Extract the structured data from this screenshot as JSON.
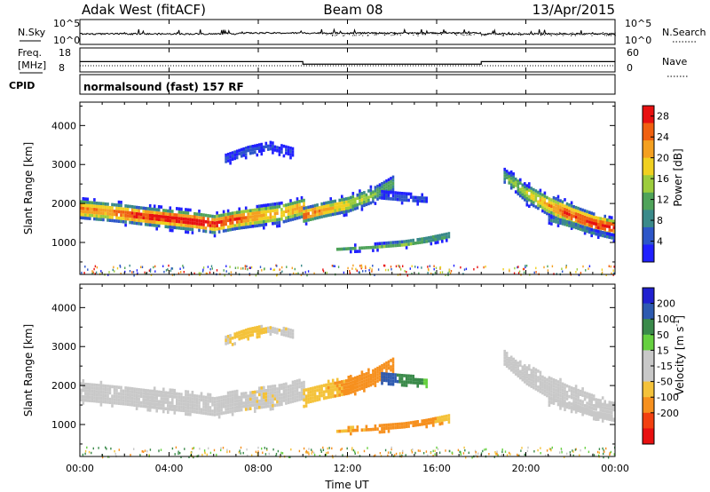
{
  "header": {
    "station": "Adak West (fitACF)",
    "beam": "Beam 08",
    "date": "13/Apr/2015"
  },
  "params": {
    "nsky_label": "N.Sky",
    "nsearch_label": "N.Search",
    "noise_ticks": [
      "10^5",
      "10^0"
    ],
    "freq_label_1": "Freq.",
    "freq_label_2": "[MHz]",
    "freq_ticks": [
      "18",
      "8"
    ],
    "nave_label": "Nave",
    "nave_ticks": [
      "60",
      "0"
    ],
    "cpid_label": "CPID",
    "cpid_text": "normalsound (fast) 157 RF"
  },
  "colors": {
    "power": [
      "#2020ff",
      "#2d56c8",
      "#3a8a8a",
      "#4fa35a",
      "#9ccc3c",
      "#f0d020",
      "#f4a020",
      "#f06010",
      "#e81010"
    ],
    "velocity": [
      "#e81010",
      "#f24010",
      "#f6901e",
      "#f4c23a",
      "#c8c8c8",
      "#c8c8c8",
      "#66d040",
      "#3a8a4a",
      "#2d5ab0",
      "#2020d0"
    ]
  },
  "chart_data": [
    {
      "type": "heatmap",
      "title": "",
      "xlabel": "Time UT",
      "ylabel": "Slant Range [km]",
      "xlim": [
        "00:00",
        "24:00"
      ],
      "ylim": [
        180,
        4600
      ],
      "x_ticks": [
        "00:00",
        "04:00",
        "08:00",
        "12:00",
        "16:00",
        "20:00",
        "00:00"
      ],
      "y_ticks": [
        1000,
        2000,
        3000,
        4000
      ],
      "colorbar": {
        "label": "Power [dB]",
        "ticks": [
          4,
          8,
          12,
          16,
          20,
          24,
          28
        ],
        "range": [
          0,
          30
        ]
      },
      "bands": [
        {
          "t": [
            0,
            1,
            2,
            3,
            4,
            5,
            6,
            7,
            8,
            9,
            10
          ],
          "center_km": [
            1850,
            1800,
            1730,
            1660,
            1610,
            1550,
            1470,
            1590,
            1680,
            1760,
            1900
          ],
          "halfwidth_km": [
            230,
            230,
            220,
            220,
            230,
            230,
            230,
            240,
            250,
            250,
            240
          ],
          "peak_db": [
            24,
            22,
            26,
            28,
            28,
            30,
            28,
            26,
            22,
            20,
            22
          ]
        },
        {
          "t": [
            10,
            11,
            12,
            13,
            14
          ],
          "center_km": [
            1700,
            1850,
            1980,
            2180,
            2500
          ],
          "halfwidth_km": [
            180,
            190,
            200,
            190,
            180
          ],
          "peak_db": [
            26,
            22,
            18,
            14,
            12
          ]
        },
        {
          "t": [
            11.5,
            13,
            14.5,
            15.5,
            16.5
          ],
          "center_km": [
            820,
            880,
            960,
            1060,
            1180
          ],
          "halfwidth_km": [
            60,
            70,
            80,
            90,
            90
          ],
          "peak_db": [
            10,
            12,
            14,
            12,
            10
          ]
        },
        {
          "t": [
            19,
            20,
            21,
            22,
            23,
            24
          ],
          "center_km": [
            2700,
            2250,
            1950,
            1700,
            1480,
            1350
          ],
          "halfwidth_km": [
            180,
            220,
            250,
            260,
            250,
            240
          ],
          "peak_db": [
            12,
            16,
            22,
            26,
            28,
            26
          ]
        },
        {
          "t": [
            21,
            22,
            23,
            24
          ],
          "center_km": [
            1600,
            1450,
            1250,
            1100
          ],
          "halfwidth_km": [
            80,
            90,
            80,
            70
          ],
          "peak_db": [
            8,
            10,
            8,
            6
          ]
        },
        {
          "t": [
            6.5,
            7.5,
            8.5,
            9.5
          ],
          "center_km": [
            3150,
            3350,
            3450,
            3300
          ],
          "halfwidth_km": [
            120,
            120,
            100,
            110
          ],
          "peak_db": [
            4,
            5,
            4,
            4
          ]
        },
        {
          "t": [
            13.5,
            14.5,
            15.5
          ],
          "center_km": [
            2200,
            2150,
            2100
          ],
          "halfwidth_km": [
            110,
            110,
            100
          ],
          "peak_db": [
            4,
            5,
            4
          ]
        }
      ]
    },
    {
      "type": "heatmap",
      "title": "",
      "xlabel": "Time UT",
      "ylabel": "Slant Range [km]",
      "xlim": [
        "00:00",
        "24:00"
      ],
      "ylim": [
        180,
        4600
      ],
      "x_ticks": [
        "00:00",
        "04:00",
        "08:00",
        "12:00",
        "16:00",
        "20:00",
        "00:00"
      ],
      "y_ticks": [
        1000,
        2000,
        3000,
        4000
      ],
      "colorbar": {
        "label": "Velocity [m s^-1]",
        "ticks": [
          200,
          100,
          50,
          15,
          -15,
          -50,
          -100,
          -200
        ],
        "range": [
          -250,
          250
        ]
      },
      "bands": [
        {
          "t": [
            0,
            1,
            2,
            3,
            4,
            5,
            6,
            7,
            8,
            9,
            10
          ],
          "center_km": [
            1850,
            1800,
            1730,
            1660,
            1610,
            1550,
            1470,
            1590,
            1680,
            1760,
            1900
          ],
          "halfwidth_km": [
            230,
            230,
            220,
            220,
            230,
            230,
            230,
            240,
            250,
            250,
            240
          ],
          "vel": [
            -5,
            -5,
            -5,
            0,
            -5,
            -5,
            0,
            -5,
            -10,
            -5,
            0
          ]
        },
        {
          "t": [
            10,
            11,
            12,
            13,
            14
          ],
          "center_km": [
            1700,
            1850,
            1980,
            2180,
            2500
          ],
          "halfwidth_km": [
            180,
            190,
            200,
            190,
            180
          ],
          "vel": [
            -30,
            -40,
            -60,
            -60,
            -60
          ]
        },
        {
          "t": [
            11.5,
            13,
            14.5,
            15.5,
            16.5
          ],
          "center_km": [
            820,
            880,
            960,
            1060,
            1180
          ],
          "halfwidth_km": [
            60,
            70,
            80,
            90,
            90
          ],
          "vel": [
            -50,
            -60,
            -70,
            -60,
            -40
          ]
        },
        {
          "t": [
            19,
            20,
            21,
            22,
            23,
            24
          ],
          "center_km": [
            2700,
            2250,
            1950,
            1700,
            1480,
            1350
          ],
          "halfwidth_km": [
            180,
            220,
            250,
            260,
            250,
            240
          ],
          "vel": [
            -5,
            0,
            -5,
            -5,
            0,
            -5
          ]
        },
        {
          "t": [
            21,
            22,
            23,
            24
          ],
          "center_km": [
            1600,
            1450,
            1250,
            1100
          ],
          "halfwidth_km": [
            80,
            90,
            80,
            70
          ],
          "vel": [
            -5,
            -5,
            -5,
            -5
          ]
        },
        {
          "t": [
            6.5,
            7.5,
            8.5,
            9.5
          ],
          "center_km": [
            3150,
            3350,
            3450,
            3300
          ],
          "halfwidth_km": [
            120,
            120,
            100,
            110
          ],
          "vel": [
            -10,
            -40,
            -10,
            -5
          ]
        },
        {
          "t": [
            13.5,
            14.5,
            15.5
          ],
          "center_km": [
            2200,
            2150,
            2100
          ],
          "halfwidth_km": [
            110,
            110,
            100
          ],
          "vel": [
            150,
            80,
            40
          ]
        }
      ]
    }
  ]
}
